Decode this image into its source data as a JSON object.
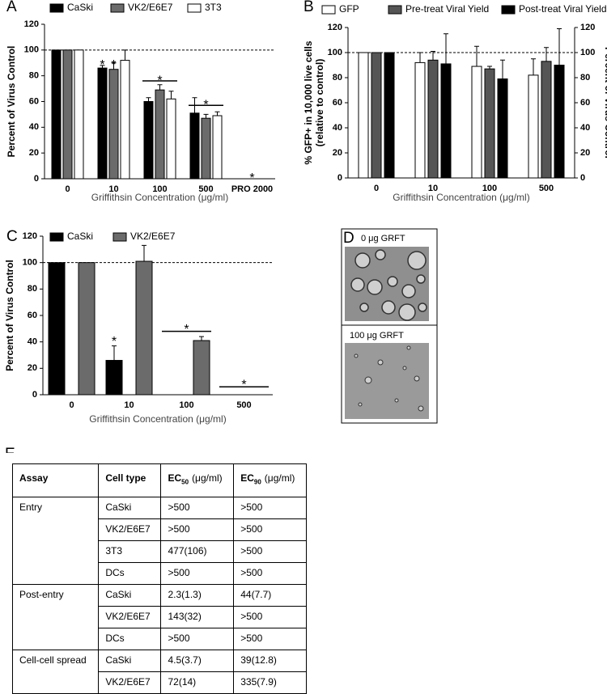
{
  "chart_data": [
    {
      "type": "bar",
      "panel_label": "A",
      "categories": [
        "0",
        "10",
        "100",
        "500",
        "PRO 2000"
      ],
      "series": [
        {
          "name": "CaSki",
          "color": "#000000",
          "values": [
            100,
            86,
            60,
            51,
            0
          ],
          "errors": [
            0,
            2,
            3,
            12,
            0
          ]
        },
        {
          "name": "VK2/E6E7",
          "color": "#6b6b6b",
          "values": [
            100,
            85,
            69,
            47,
            0
          ],
          "errors": [
            0,
            5,
            4,
            3,
            0
          ]
        },
        {
          "name": "3T3",
          "color": "#ffffff",
          "values": [
            100,
            92,
            62,
            49,
            0
          ],
          "errors": [
            0,
            8,
            6,
            3,
            0
          ]
        }
      ],
      "ylim": [
        0,
        120
      ],
      "yticks": [
        0,
        20,
        40,
        60,
        80,
        100,
        120
      ],
      "reference_line": 100,
      "y_label": "Percent of Virus Control",
      "x_label": "Griffithsin Concentration (μg/ml)",
      "annotations": [
        {
          "text": "*",
          "x": "10",
          "series": "CaSki",
          "y": 91
        },
        {
          "text": "*",
          "x": "10",
          "series": "VK2/E6E7",
          "y": 91
        },
        {
          "text": "*",
          "x": "100",
          "y": 79,
          "bracket": 76
        },
        {
          "text": "*",
          "x": "500",
          "y": 60,
          "bracket": 57
        },
        {
          "text": "*",
          "x": "PRO 2000",
          "y": 3
        }
      ]
    },
    {
      "type": "bar",
      "panel_label": "B",
      "categories": [
        "0",
        "10",
        "100",
        "500"
      ],
      "series": [
        {
          "name": "GFP",
          "color": "#ffffff",
          "values": [
            100,
            92,
            89,
            82
          ],
          "errors": [
            0,
            8,
            16,
            13
          ]
        },
        {
          "name": "Pre-treat Viral Yield",
          "color": "#555555",
          "values": [
            100,
            94,
            87,
            93
          ],
          "errors": [
            0,
            7,
            2,
            11
          ],
          "axis": "y2"
        },
        {
          "name": "Post-treat Viral Yield",
          "color": "#000000",
          "values": [
            100,
            91,
            79,
            90
          ],
          "errors": [
            0,
            24,
            15,
            29
          ],
          "axis": "y2"
        }
      ],
      "ylim": [
        0,
        120
      ],
      "yticks": [
        0,
        20,
        40,
        60,
        80,
        100,
        120
      ],
      "y2lim": [
        0,
        120
      ],
      "y2ticks": [
        0,
        20,
        40,
        60,
        80,
        100,
        120
      ],
      "reference_line": 100,
      "y_label": [
        "% GFP+ in 10,000 live cells",
        "(relative to control)"
      ],
      "y2_label": "Percent of Virus Control",
      "x_label": "Griffithsin  Concentration (μg/ml)",
      "annotations": []
    },
    {
      "type": "bar",
      "panel_label": "C",
      "categories": [
        "0",
        "10",
        "100",
        "500"
      ],
      "series": [
        {
          "name": "CaSki",
          "color": "#000000",
          "values": [
            100,
            26,
            0,
            0
          ],
          "errors": [
            0,
            11,
            0,
            0
          ]
        },
        {
          "name": "VK2/E6E7",
          "color": "#6b6b6b",
          "values": [
            100,
            101,
            41,
            0
          ],
          "errors": [
            0,
            12,
            3,
            0
          ]
        }
      ],
      "ylim": [
        0,
        120
      ],
      "yticks": [
        0,
        20,
        40,
        60,
        80,
        100,
        120
      ],
      "reference_line": 100,
      "y_label": "Percent of Virus Control",
      "x_label": "Griffithsin Concentration (μg/ml)",
      "annotations": [
        {
          "text": "*",
          "x": "10",
          "series": "CaSki",
          "y": 43
        },
        {
          "text": "*",
          "x": "100",
          "y": 52,
          "bracket": 48
        },
        {
          "text": "*",
          "x": "500",
          "y": 10,
          "bracket": 6
        }
      ]
    }
  ],
  "panel_d": {
    "panel_label": "D",
    "images": [
      "0 μg GRFT",
      "100 μg GRFT"
    ]
  },
  "table": {
    "panel_label": "E",
    "columns": [
      {
        "text": "Assay"
      },
      {
        "text": "Cell type"
      },
      {
        "text": "EC",
        "sub": "50",
        "unit": "(μg/ml)"
      },
      {
        "text": "EC",
        "sub": "90",
        "unit": "(μg/ml)"
      }
    ],
    "groups": [
      {
        "assay": "Entry",
        "rows": [
          [
            "CaSki",
            ">500",
            ">500"
          ],
          [
            "VK2/E6E7",
            ">500",
            ">500"
          ],
          [
            "3T3",
            "477(106)",
            ">500"
          ],
          [
            "DCs",
            ">500",
            ">500"
          ]
        ]
      },
      {
        "assay": "Post-entry",
        "rows": [
          [
            "CaSki",
            "2.3(1.3)",
            "44(7.7)"
          ],
          [
            "VK2/E6E7",
            "143(32)",
            ">500"
          ],
          [
            "DCs",
            ">500",
            ">500"
          ]
        ]
      },
      {
        "assay": "Cell-cell spread",
        "rows": [
          [
            "CaSki",
            "4.5(3.7)",
            "39(12.8)"
          ],
          [
            "VK2/E6E7",
            "72(14)",
            "335(7.9)"
          ]
        ]
      }
    ]
  }
}
